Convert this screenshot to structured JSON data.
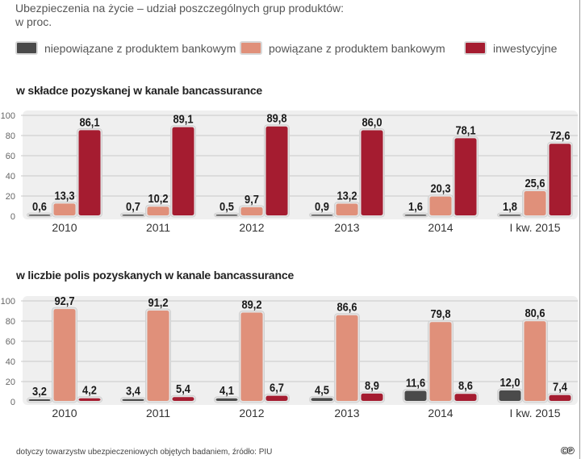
{
  "title_line1": "Ubezpieczenia na życie – udział poszczególnych grup produktów:",
  "title_line2": "w proc.",
  "legend": [
    {
      "label": "niepowiązane z produktem bankowym",
      "color": "#4a4a4a"
    },
    {
      "label": "powiązane z produktem bankowym",
      "color": "#e0907a"
    },
    {
      "label": "inwestycyjne",
      "color": "#a51c30"
    }
  ],
  "footer": "dotyczy towarzystw ubezpieczeniowych objętych badaniem, źródło: PIU",
  "cc_mark": "©℗",
  "chart_data": [
    {
      "type": "bar",
      "title": "w składce pozyskanej w kanale bancassurance",
      "categories": [
        "2010",
        "2011",
        "2012",
        "2013",
        "2014",
        "I kw. 2015"
      ],
      "ylim": [
        0,
        100
      ],
      "yticks": [
        0,
        20,
        40,
        60,
        80,
        100
      ],
      "grid": true,
      "legend": "top",
      "series": [
        {
          "name": "niepowiązane z produktem bankowym",
          "values": [
            0.6,
            0.7,
            0.5,
            0.9,
            1.6,
            1.8
          ],
          "labels": [
            "0,6",
            "0,7",
            "0,5",
            "0,9",
            "1,6",
            "1,8"
          ],
          "color": "#4a4a4a"
        },
        {
          "name": "powiązane z produktem bankowym",
          "values": [
            13.3,
            10.2,
            9.7,
            13.2,
            20.3,
            25.6
          ],
          "labels": [
            "13,3",
            "10,2",
            "9,7",
            "13,2",
            "20,3",
            "25,6"
          ],
          "color": "#e0907a"
        },
        {
          "name": "inwestycyjne",
          "values": [
            86.1,
            89.1,
            89.8,
            86.0,
            78.1,
            72.6
          ],
          "labels": [
            "86,1",
            "89,1",
            "89,8",
            "86,0",
            "78,1",
            "72,6"
          ],
          "color": "#a51c30"
        }
      ]
    },
    {
      "type": "bar",
      "title": "w liczbie polis pozyskanych w kanale bancassurance",
      "categories": [
        "2010",
        "2011",
        "2012",
        "2013",
        "2014",
        "I kw. 2015"
      ],
      "ylim": [
        0,
        100
      ],
      "yticks": [
        0,
        20,
        40,
        60,
        80,
        100
      ],
      "grid": true,
      "legend": "top",
      "series": [
        {
          "name": "niepowiązane z produktem bankowym",
          "values": [
            3.2,
            3.4,
            4.1,
            4.5,
            11.6,
            12.0
          ],
          "labels": [
            "3,2",
            "3,4",
            "4,1",
            "4,5",
            "11,6",
            "12,0"
          ],
          "color": "#4a4a4a"
        },
        {
          "name": "powiązane z produktem bankowym",
          "values": [
            92.7,
            91.2,
            89.2,
            86.6,
            79.8,
            80.6
          ],
          "labels": [
            "92,7",
            "91,2",
            "89,2",
            "86,6",
            "79,8",
            "80,6"
          ],
          "color": "#e0907a"
        },
        {
          "name": "inwestycyjne",
          "values": [
            4.2,
            5.4,
            6.7,
            8.9,
            8.6,
            7.4
          ],
          "labels": [
            "4,2",
            "5,4",
            "6,7",
            "8,9",
            "8,6",
            "7,4"
          ],
          "color": "#a51c30"
        }
      ]
    }
  ]
}
